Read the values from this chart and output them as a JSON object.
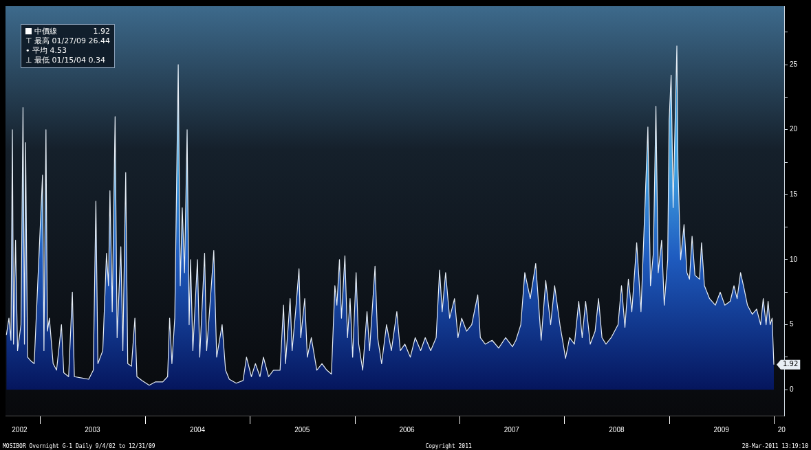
{
  "chart_data": {
    "type": "area",
    "legend": "top left",
    "grid": false,
    "xlim": [
      "2002-09-01",
      "2010-02-05"
    ],
    "xticks": [
      {
        "value": "2002-10-20",
        "label": "2002"
      },
      {
        "value": "2003-01-01",
        "label": null
      },
      {
        "value": "2003-07-01",
        "label": "2003"
      },
      {
        "value": "2004-01-01",
        "label": null
      },
      {
        "value": "2004-07-01",
        "label": "2004"
      },
      {
        "value": "2005-01-01",
        "label": null
      },
      {
        "value": "2005-07-01",
        "label": "2005"
      },
      {
        "value": "2006-01-01",
        "label": null
      },
      {
        "value": "2006-07-01",
        "label": "2006"
      },
      {
        "value": "2007-01-01",
        "label": null
      },
      {
        "value": "2007-07-01",
        "label": "2007"
      },
      {
        "value": "2008-01-01",
        "label": null
      },
      {
        "value": "2008-07-01",
        "label": "2008"
      },
      {
        "value": "2009-01-01",
        "label": null
      },
      {
        "value": "2009-07-01",
        "label": "2009"
      },
      {
        "value": "2010-01-01",
        "label": null
      },
      {
        "value": "2010-01-27",
        "label": "20"
      }
    ],
    "ylim": [
      -2,
      29.5
    ],
    "yticks": [
      0,
      {
        "value": 2.5,
        "label": null
      },
      5,
      {
        "value": 7.5,
        "label": null
      },
      10,
      {
        "value": 12.5,
        "label": null
      },
      15,
      {
        "value": 17.5,
        "label": null
      },
      20,
      {
        "value": 22.5,
        "label": null
      },
      25,
      {
        "value": 27.5,
        "label": null
      }
    ],
    "annotations": [
      {
        "text": "1.92",
        "x": "2009-12-31",
        "y": 1.92
      },
      "⊤ 最高 01/27/09 26.44",
      "• 平均 4.53",
      "⊥ 最低 01/15/04 0.34",
      "MOSIBOR Overnight G-1 Daily 9/4/02 to 12/31/09",
      "Copyright 2011",
      "28-Mar-2011 13:19:10"
    ],
    "series": [
      {
        "name": "中價線",
        "color": "#1f5cc0",
        "x": [
          "2002-09-04",
          "2002-09-13",
          "2002-09-20",
          "2002-09-25",
          "2002-09-29",
          "2002-10-06",
          "2002-10-13",
          "2002-10-25",
          "2002-11-01",
          "2002-11-06",
          "2002-11-10",
          "2002-11-17",
          "2002-11-29",
          "2002-12-10",
          "2003-01-08",
          "2003-01-13",
          "2003-01-20",
          "2003-01-25",
          "2003-02-01",
          "2003-02-14",
          "2003-02-26",
          "2003-03-15",
          "2003-03-23",
          "2003-04-09",
          "2003-04-22",
          "2003-04-29",
          "2003-05-24",
          "2003-06-18",
          "2003-07-04",
          "2003-07-13",
          "2003-07-20",
          "2003-08-06",
          "2003-08-19",
          "2003-08-26",
          "2003-08-31",
          "2003-09-08",
          "2003-09-18",
          "2003-09-25",
          "2003-10-08",
          "2003-10-15",
          "2003-10-25",
          "2003-11-01",
          "2003-11-14",
          "2003-11-26",
          "2003-12-03",
          "2003-12-21",
          "2004-01-15",
          "2004-02-06",
          "2004-03-02",
          "2004-03-19",
          "2004-03-26",
          "2004-04-03",
          "2004-04-13",
          "2004-04-25",
          "2004-05-02",
          "2004-05-09",
          "2004-05-17",
          "2004-05-26",
          "2004-06-02",
          "2004-06-07",
          "2004-06-15",
          "2004-06-24",
          "2004-07-01",
          "2004-07-09",
          "2004-07-26",
          "2004-08-02",
          "2004-08-12",
          "2004-08-27",
          "2004-09-06",
          "2004-09-25",
          "2004-10-07",
          "2004-10-20",
          "2004-11-13",
          "2004-12-07",
          "2004-12-19",
          "2005-01-05",
          "2005-01-19",
          "2005-02-04",
          "2005-02-16",
          "2005-03-06",
          "2005-03-23",
          "2005-04-15",
          "2005-04-27",
          "2005-05-04",
          "2005-05-20",
          "2005-05-27",
          "2005-06-08",
          "2005-06-20",
          "2005-06-26",
          "2005-07-10",
          "2005-07-19",
          "2005-08-02",
          "2005-08-21",
          "2005-09-08",
          "2005-09-25",
          "2005-10-11",
          "2005-10-23",
          "2005-10-30",
          "2005-11-08",
          "2005-11-15",
          "2005-11-27",
          "2005-12-06",
          "2005-12-15",
          "2005-12-24",
          "2006-01-05",
          "2006-01-14",
          "2006-01-28",
          "2006-02-12",
          "2006-02-21",
          "2006-03-12",
          "2006-03-21",
          "2006-04-04",
          "2006-04-21",
          "2006-05-08",
          "2006-05-27",
          "2006-06-08",
          "2006-06-24",
          "2006-07-13",
          "2006-07-30",
          "2006-08-18",
          "2006-09-03",
          "2006-09-22",
          "2006-10-11",
          "2006-10-23",
          "2006-11-01",
          "2006-11-13",
          "2006-11-27",
          "2006-12-14",
          "2006-12-26",
          "2007-01-08",
          "2007-01-25",
          "2007-02-12",
          "2007-03-05",
          "2007-03-14",
          "2007-03-31",
          "2007-04-24",
          "2007-05-17",
          "2007-06-10",
          "2007-07-04",
          "2007-07-16",
          "2007-08-02",
          "2007-08-16",
          "2007-09-04",
          "2007-09-23",
          "2007-10-12",
          "2007-10-28",
          "2007-11-14",
          "2007-11-28",
          "2007-12-17",
          "2007-12-28",
          "2008-01-05",
          "2008-01-19",
          "2008-02-05",
          "2008-02-20",
          "2008-03-03",
          "2008-03-15",
          "2008-03-31",
          "2008-04-17",
          "2008-04-29",
          "2008-05-11",
          "2008-05-25",
          "2008-06-12",
          "2008-07-06",
          "2008-07-18",
          "2008-07-30",
          "2008-08-11",
          "2008-08-23",
          "2008-09-09",
          "2008-09-24",
          "2008-10-18",
          "2008-10-27",
          "2008-11-06",
          "2008-11-15",
          "2008-11-23",
          "2008-12-05",
          "2008-12-14",
          "2008-12-26",
          "2008-12-31",
          "2009-01-07",
          "2009-01-14",
          "2009-01-27",
          "2009-01-31",
          "2009-02-09",
          "2009-02-21",
          "2009-03-03",
          "2009-03-12",
          "2009-03-21",
          "2009-03-31",
          "2009-04-16",
          "2009-04-23",
          "2009-05-03",
          "2009-05-21",
          "2009-06-10",
          "2009-06-27",
          "2009-07-13",
          "2009-08-01",
          "2009-08-14",
          "2009-08-25",
          "2009-09-06",
          "2009-09-18",
          "2009-09-30",
          "2009-10-17",
          "2009-11-01",
          "2009-11-15",
          "2009-11-24",
          "2009-12-04",
          "2009-12-11",
          "2009-12-18",
          "2009-12-25",
          "2009-12-31"
        ],
        "values": [
          4.2,
          5.5,
          3.8,
          20,
          3.5,
          11.5,
          3,
          5,
          21.7,
          3.5,
          19,
          2.5,
          2.2,
          2,
          16.5,
          3,
          20,
          4.5,
          5.5,
          2,
          1.5,
          5,
          1.3,
          1,
          7.5,
          1,
          0.9,
          0.8,
          1.5,
          14.5,
          2,
          3,
          10.5,
          8,
          15.3,
          6,
          21,
          4,
          11,
          3,
          16.7,
          2,
          1.8,
          5.5,
          1,
          0.7,
          0.34,
          0.6,
          0.6,
          1,
          5.5,
          2,
          5.5,
          25,
          8,
          14,
          9,
          20,
          5,
          10,
          3,
          7,
          10,
          2.5,
          10.5,
          3,
          6,
          10.7,
          2.5,
          5,
          1.5,
          0.8,
          0.5,
          0.7,
          2.5,
          1,
          2,
          1,
          2.5,
          1,
          1.5,
          1.5,
          6.5,
          2,
          7,
          3,
          6,
          9.3,
          4,
          7,
          2.5,
          4,
          1.5,
          2,
          1.5,
          1.2,
          8,
          6.5,
          10,
          5.5,
          10.3,
          4,
          7,
          2.5,
          9,
          3.5,
          1.5,
          6,
          3,
          9.5,
          4,
          2,
          5,
          3,
          6,
          3,
          3.5,
          2.5,
          4,
          3,
          4,
          3,
          4,
          9.2,
          6,
          9,
          5.5,
          7,
          4,
          5.5,
          4.5,
          5,
          7.3,
          4,
          3.5,
          3.8,
          3.2,
          4,
          3.3,
          3.8,
          5,
          9,
          7,
          9.7,
          3.8,
          8.4,
          5,
          8,
          4.9,
          3.5,
          2.4,
          4,
          3.5,
          6.8,
          4,
          6.8,
          3.5,
          4.5,
          7,
          4,
          3.5,
          4,
          5,
          8,
          4.8,
          8.5,
          6,
          11.3,
          6,
          20.2,
          8,
          10.5,
          21.8,
          9,
          11.5,
          6.5,
          10,
          20.7,
          24.2,
          14,
          26.44,
          17,
          10,
          12.7,
          9,
          8.5,
          11.8,
          8.8,
          8.5,
          11.3,
          8,
          7,
          6.5,
          7.5,
          6.5,
          6.8,
          8,
          7,
          9,
          7.8,
          6.5,
          5.8,
          6.2,
          5,
          7,
          5,
          6.8,
          5,
          5.5,
          1.92
        ]
      }
    ]
  }
}
